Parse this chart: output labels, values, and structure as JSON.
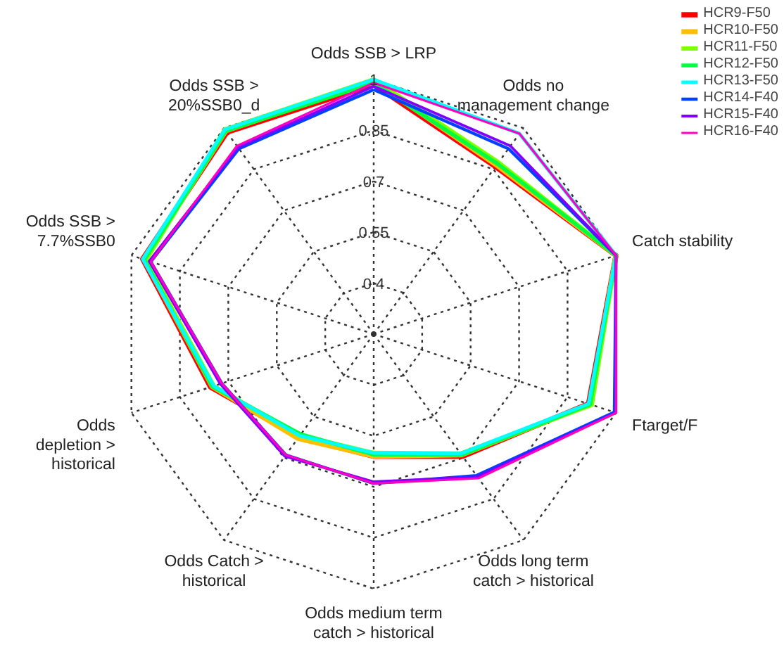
{
  "chart_data": {
    "type": "radar",
    "categories": [
      "Odds SSB > LRP",
      "Odds no\nmanagement change",
      "Catch stability",
      "Ftarget/F",
      "Odds long term\ncatch > historical",
      "Odds medium term\ncatch > historical",
      "Odds Catch >\nhistorical",
      "Odds\ndepletion >\nhistorical",
      "Odds SSB >\n7.7%SSB0",
      "Odds SSB >\n20%SSB0_d"
    ],
    "series": [
      {
        "name": "HCR9-F50",
        "color": "#ff0000",
        "values": [
          0.985,
          0.86,
          1,
          0.915,
          0.695,
          0.61,
          0.625,
          0.755,
          0.965,
          0.985
        ]
      },
      {
        "name": "HCR10-F50",
        "color": "#ffbf00",
        "values": [
          0.995,
          0.865,
          1,
          0.92,
          0.69,
          0.61,
          0.63,
          0.75,
          0.96,
          0.99
        ]
      },
      {
        "name": "HCR11-F50",
        "color": "#80ff00",
        "values": [
          1,
          0.875,
          1,
          0.925,
          0.685,
          0.6,
          0.62,
          0.745,
          0.955,
          0.995
        ]
      },
      {
        "name": "HCR12-F50",
        "color": "#00ff40",
        "values": [
          0.99,
          0.87,
          1,
          0.92,
          0.69,
          0.605,
          0.615,
          0.75,
          0.96,
          0.99
        ]
      },
      {
        "name": "HCR13-F50",
        "color": "#00ffff",
        "values": [
          1,
          0.98,
          1,
          0.915,
          0.685,
          0.6,
          0.62,
          0.745,
          0.965,
          0.995
        ]
      },
      {
        "name": "HCR14-F40",
        "color": "#0040ff",
        "values": [
          0.97,
          0.925,
          1,
          0.995,
          0.765,
          0.69,
          0.69,
          0.72,
          0.94,
          0.925
        ]
      },
      {
        "name": "HCR15-F40",
        "color": "#8000ff",
        "values": [
          0.98,
          0.935,
          1,
          1,
          0.77,
          0.685,
          0.695,
          0.725,
          0.945,
          0.93
        ]
      },
      {
        "name": "HCR16-F40",
        "color": "#ff00bf",
        "values": [
          0.99,
          0.98,
          1,
          1,
          0.775,
          0.69,
          0.69,
          0.72,
          0.94,
          0.935
        ]
      }
    ],
    "ylim": [
      0.25,
      1
    ],
    "yticks": [
      0.4,
      0.55,
      0.7,
      0.85,
      1
    ],
    "grid": true,
    "legend": "top right",
    "marker": "none",
    "line_style": "solid"
  }
}
